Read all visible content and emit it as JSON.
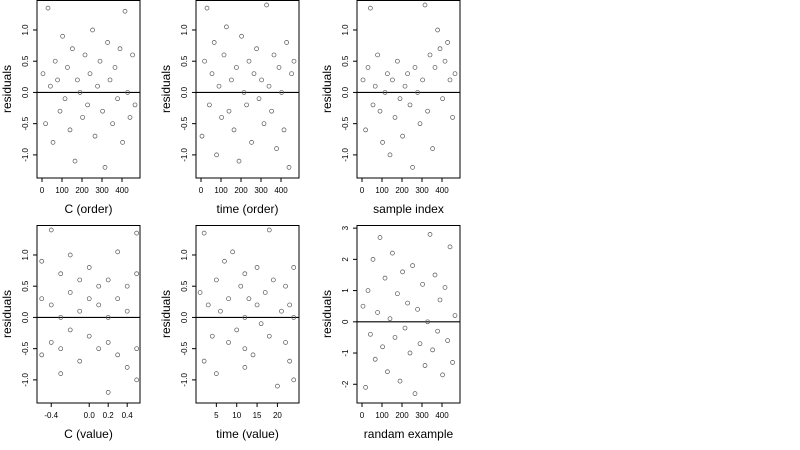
{
  "chart_data": [
    {
      "type": "scatter",
      "xlabel": "C (order)",
      "ylabel": "residuals",
      "color": "#555555",
      "hline": 0,
      "xlim": [
        -25,
        490
      ],
      "xticks": [
        0,
        100,
        200,
        300,
        400
      ],
      "ylim": [
        -1.37,
        1.48
      ],
      "yticks": [
        {
          "value": 1,
          "label": "1.0"
        },
        {
          "value": 0.5,
          "label": "0.5"
        },
        {
          "value": 0,
          "label": "0.0"
        },
        {
          "value": -0.5,
          "label": "-0.5"
        },
        {
          "value": -1,
          "label": "-1.0"
        }
      ],
      "x": [
        5,
        18,
        30,
        42,
        55,
        66,
        78,
        90,
        103,
        115,
        127,
        140,
        152,
        165,
        177,
        190,
        203,
        215,
        228,
        240,
        253,
        265,
        278,
        290,
        303,
        315,
        328,
        340,
        353,
        365,
        378,
        390,
        403,
        415,
        428,
        440,
        453,
        465
      ],
      "values": [
        0.3,
        -0.5,
        1.35,
        0.1,
        -0.8,
        0.5,
        0.2,
        -0.3,
        0.9,
        -0.1,
        0.4,
        -0.6,
        0.7,
        -1.1,
        0.2,
        0.0,
        -0.4,
        0.6,
        -0.2,
        0.3,
        1.0,
        -0.7,
        0.1,
        0.5,
        -0.3,
        -1.2,
        0.8,
        0.2,
        -0.5,
        0.4,
        -0.1,
        0.7,
        -0.8,
        1.3,
        0.0,
        -0.4,
        0.6,
        -0.2
      ]
    },
    {
      "type": "scatter",
      "xlabel": "time (order)",
      "ylabel": "residuals",
      "color": "#555555",
      "hline": 0,
      "xlim": [
        -25,
        490
      ],
      "xticks": [
        0,
        100,
        200,
        300,
        400
      ],
      "ylim": [
        -1.37,
        1.48
      ],
      "yticks": [
        {
          "value": 1,
          "label": "1.0"
        },
        {
          "value": 0.5,
          "label": "0.5"
        },
        {
          "value": 0,
          "label": "0.0"
        },
        {
          "value": -0.5,
          "label": "-0.5"
        },
        {
          "value": -1,
          "label": "-1.0"
        }
      ],
      "x": [
        5,
        18,
        30,
        42,
        55,
        66,
        78,
        90,
        103,
        115,
        127,
        140,
        152,
        165,
        177,
        190,
        203,
        215,
        228,
        240,
        253,
        265,
        278,
        290,
        303,
        315,
        328,
        340,
        353,
        365,
        378,
        390,
        403,
        415,
        428,
        440,
        453,
        465
      ],
      "values": [
        -0.7,
        0.5,
        1.35,
        -0.2,
        0.3,
        0.8,
        -1.0,
        0.1,
        -0.4,
        0.6,
        1.05,
        -0.3,
        0.2,
        -0.6,
        0.4,
        -1.1,
        0.9,
        0.0,
        -0.2,
        0.5,
        -0.8,
        0.3,
        0.7,
        -0.1,
        0.2,
        -0.5,
        1.4,
        0.1,
        -0.3,
        0.6,
        -0.9,
        0.4,
        0.0,
        -0.6,
        0.8,
        -1.2,
        0.3,
        0.5
      ]
    },
    {
      "type": "scatter",
      "xlabel": "sample index",
      "ylabel": "residuals",
      "color": "#555555",
      "hline": 0,
      "xlim": [
        -25,
        490
      ],
      "xticks": [
        0,
        100,
        200,
        300,
        400
      ],
      "ylim": [
        -1.37,
        1.48
      ],
      "yticks": [
        {
          "value": 1,
          "label": "1.0"
        },
        {
          "value": 0.5,
          "label": "0.5"
        },
        {
          "value": 0,
          "label": "0.0"
        },
        {
          "value": -0.5,
          "label": "-0.5"
        },
        {
          "value": -1,
          "label": "-1.0"
        }
      ],
      "x": [
        5,
        18,
        30,
        42,
        55,
        66,
        78,
        90,
        103,
        115,
        127,
        140,
        152,
        165,
        177,
        190,
        203,
        215,
        228,
        240,
        253,
        265,
        278,
        290,
        303,
        315,
        328,
        340,
        353,
        365,
        378,
        390,
        403,
        415,
        428,
        440,
        453,
        465
      ],
      "values": [
        0.2,
        -0.6,
        0.4,
        1.35,
        -0.2,
        0.1,
        0.6,
        -0.3,
        -0.8,
        0.0,
        0.3,
        -1.0,
        0.2,
        -0.4,
        0.5,
        -0.1,
        -0.7,
        0.1,
        0.3,
        -0.2,
        -1.2,
        0.4,
        0.0,
        -0.5,
        0.2,
        1.4,
        -0.3,
        0.6,
        -0.9,
        0.4,
        1.0,
        0.7,
        -0.1,
        0.5,
        0.8,
        0.2,
        -0.4,
        0.3
      ]
    },
    {
      "type": "scatter",
      "xlabel": "C (value)",
      "ylabel": "residuals",
      "color": "#555555",
      "hline": 0,
      "xlim": [
        -0.55,
        0.535
      ],
      "xticks": [
        -0.4,
        {
          "value": 0,
          "label": "0.0"
        },
        0.2,
        0.4
      ],
      "ylim": [
        -1.37,
        1.48
      ],
      "yticks": [
        {
          "value": 1,
          "label": "1.0"
        },
        {
          "value": 0.5,
          "label": "0.5"
        },
        {
          "value": 0,
          "label": "0.0"
        },
        {
          "value": -0.5,
          "label": "-0.5"
        },
        {
          "value": -1,
          "label": "-1.0"
        }
      ],
      "x": [
        -0.5,
        -0.5,
        -0.5,
        -0.4,
        -0.4,
        -0.4,
        -0.3,
        -0.3,
        -0.3,
        -0.3,
        -0.2,
        -0.2,
        -0.2,
        -0.1,
        -0.1,
        -0.1,
        0.0,
        0.0,
        0.0,
        0.1,
        0.1,
        0.1,
        0.2,
        0.2,
        0.2,
        0.2,
        0.3,
        0.3,
        0.3,
        0.4,
        0.4,
        0.4,
        0.5,
        0.5,
        0.5,
        0.5
      ],
      "values": [
        0.3,
        -0.6,
        0.9,
        1.4,
        -0.4,
        0.2,
        0.7,
        -0.5,
        0.0,
        -0.9,
        0.4,
        -0.2,
        1.0,
        0.6,
        -0.7,
        0.1,
        0.3,
        -0.3,
        0.8,
        -0.5,
        0.2,
        0.5,
        0.6,
        -0.4,
        0.0,
        -1.2,
        1.05,
        -0.6,
        0.3,
        0.5,
        -0.8,
        0.1,
        1.35,
        -0.5,
        0.7,
        -1.0
      ]
    },
    {
      "type": "scatter",
      "xlabel": "time (value)",
      "ylabel": "residuals",
      "color": "#555555",
      "hline": 0,
      "xlim": [
        0,
        25.3
      ],
      "xticks": [
        5,
        10,
        15,
        20
      ],
      "ylim": [
        -1.37,
        1.48
      ],
      "yticks": [
        {
          "value": 1,
          "label": "1.0"
        },
        {
          "value": 0.5,
          "label": "0.5"
        },
        {
          "value": 0,
          "label": "0.0"
        },
        {
          "value": -0.5,
          "label": "-0.5"
        },
        {
          "value": -1,
          "label": "-1.0"
        }
      ],
      "x": [
        1,
        2,
        2,
        3,
        4,
        5,
        5,
        6,
        7,
        8,
        8,
        9,
        10,
        11,
        12,
        12,
        12,
        12,
        13,
        14,
        15,
        15,
        16,
        17,
        18,
        18,
        19,
        20,
        21,
        22,
        22,
        23,
        23,
        24,
        24,
        24
      ],
      "values": [
        0.4,
        -0.7,
        1.35,
        0.2,
        -0.3,
        0.6,
        -0.9,
        0.1,
        0.9,
        -0.4,
        0.3,
        1.05,
        -0.2,
        0.5,
        0.7,
        -0.5,
        0.0,
        -0.8,
        0.3,
        -0.6,
        0.2,
        0.8,
        -0.1,
        0.4,
        1.4,
        -0.3,
        0.6,
        -1.1,
        0.1,
        0.5,
        -0.4,
        0.2,
        -0.7,
        0.8,
        0.0,
        -1.0
      ]
    },
    {
      "type": "scatter",
      "xlabel": "randam example",
      "ylabel": "residuals",
      "color": "#555555",
      "hline": 0,
      "xlim": [
        -25,
        490
      ],
      "xticks": [
        0,
        100,
        200,
        300,
        400
      ],
      "ylim": [
        -2.6,
        3.1
      ],
      "yticks": [
        -2,
        -1,
        0,
        1,
        2,
        3
      ],
      "x": [
        5,
        18,
        30,
        42,
        55,
        66,
        78,
        90,
        103,
        115,
        127,
        140,
        152,
        165,
        177,
        190,
        203,
        215,
        228,
        240,
        253,
        265,
        278,
        290,
        303,
        315,
        328,
        340,
        353,
        365,
        378,
        390,
        403,
        415,
        428,
        440,
        453,
        465
      ],
      "values": [
        0.5,
        -2.1,
        1.0,
        -0.4,
        2.0,
        -1.2,
        0.3,
        2.7,
        -0.8,
        1.4,
        -1.6,
        0.1,
        2.2,
        -0.5,
        0.9,
        -1.9,
        1.6,
        -0.2,
        0.6,
        -1.0,
        1.8,
        -2.3,
        0.4,
        -0.7,
        1.2,
        -1.4,
        0.0,
        2.8,
        -0.9,
        1.5,
        -0.3,
        0.7,
        -1.7,
        1.1,
        -0.6,
        2.4,
        -1.3,
        0.2
      ]
    }
  ]
}
